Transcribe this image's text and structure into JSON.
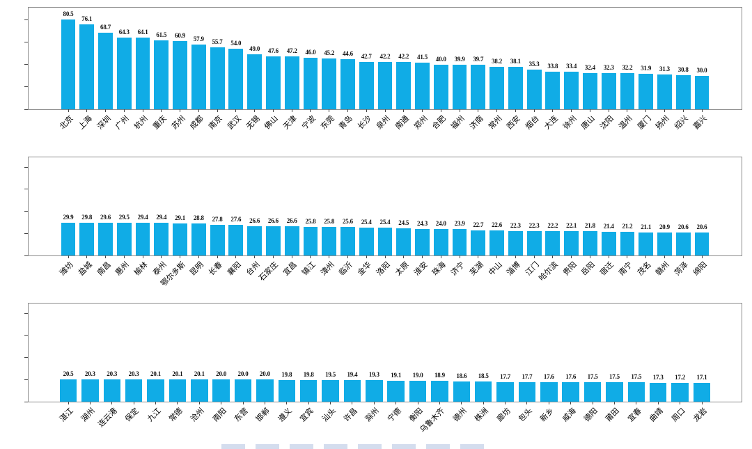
{
  "figure": {
    "background": "#ffffff",
    "bar_color": "#10ace6",
    "axis_color": "#8a8a8a",
    "text_color": "#000000",
    "bottom_caption_clipped": true
  },
  "chart_data": [
    {
      "type": "bar",
      "panel": "top",
      "title": "",
      "xlabel": "",
      "ylabel": "",
      "yticks": [
        0,
        20,
        40,
        60,
        80
      ],
      "ylim": [
        0,
        91
      ],
      "grid": false,
      "legend": null,
      "bar_color": "#10ace6",
      "value_labels_shown": true,
      "categories": [
        "北京",
        "上海",
        "深圳",
        "广州",
        "杭州",
        "重庆",
        "苏州",
        "成都",
        "南京",
        "武汉",
        "无锡",
        "佛山",
        "天津",
        "宁波",
        "东莞",
        "青岛",
        "长沙",
        "泉州",
        "南通",
        "郑州",
        "合肥",
        "福州",
        "济南",
        "常州",
        "西安",
        "烟台",
        "大连",
        "徐州",
        "唐山",
        "沈阳",
        "温州",
        "厦门",
        "扬州",
        "绍兴",
        "嘉兴"
      ],
      "values": [
        80.5,
        76.1,
        68.7,
        64.3,
        64.1,
        61.5,
        60.9,
        57.9,
        55.7,
        54.0,
        49.0,
        47.6,
        47.2,
        46.0,
        45.2,
        44.6,
        42.7,
        42.2,
        42.2,
        41.5,
        40.0,
        39.9,
        39.7,
        38.2,
        38.1,
        35.3,
        33.8,
        33.4,
        32.4,
        32.3,
        32.2,
        31.9,
        31.3,
        30.8,
        30.0
      ]
    },
    {
      "type": "bar",
      "panel": "middle",
      "title": "",
      "xlabel": "",
      "ylabel": "",
      "yticks": [
        0,
        20,
        40,
        60,
        80
      ],
      "ylim": [
        0,
        89
      ],
      "grid": false,
      "legend": null,
      "bar_color": "#10ace6",
      "value_labels_shown": true,
      "categories": [
        "潍坊",
        "盐城",
        "南昌",
        "惠州",
        "榆林",
        "泰州",
        "鄂尔多斯",
        "昆明",
        "长春",
        "襄阳",
        "台州",
        "石家庄",
        "宜昌",
        "镇江",
        "漳州",
        "临沂",
        "金华",
        "洛阳",
        "太原",
        "淮安",
        "珠海",
        "济宁",
        "芜湖",
        "中山",
        "淄博",
        "江门",
        "哈尔滨",
        "贵阳",
        "岳阳",
        "宿迁",
        "南宁",
        "茂名",
        "赣州",
        "菏泽",
        "绵阳"
      ],
      "values": [
        29.9,
        29.8,
        29.6,
        29.5,
        29.4,
        29.4,
        29.1,
        28.8,
        27.8,
        27.6,
        26.6,
        26.6,
        26.6,
        25.8,
        25.8,
        25.6,
        25.4,
        25.4,
        24.5,
        24.3,
        24.0,
        23.9,
        22.7,
        22.6,
        22.3,
        22.3,
        22.2,
        22.1,
        21.8,
        21.4,
        21.2,
        21.1,
        20.9,
        20.6,
        20.6
      ]
    },
    {
      "type": "bar",
      "panel": "bottom",
      "title": "",
      "xlabel": "",
      "ylabel": "",
      "yticks": [
        0,
        20,
        40,
        60,
        80
      ],
      "ylim": [
        0,
        89
      ],
      "grid": false,
      "legend": null,
      "bar_color": "#10ace6",
      "value_labels_shown": true,
      "categories": [
        "湛江",
        "湖州",
        "连云港",
        "保定",
        "九江",
        "常德",
        "沧州",
        "南阳",
        "东营",
        "邯郸",
        "遵义",
        "宜宾",
        "汕头",
        "许昌",
        "滁州",
        "宁德",
        "衡阳",
        "乌鲁木齐",
        "德州",
        "株洲",
        "廊坊",
        "包头",
        "新乡",
        "威海",
        "德阳",
        "莆田",
        "宜春",
        "曲靖",
        "周口",
        "龙岩"
      ],
      "values": [
        20.5,
        20.3,
        20.3,
        20.3,
        20.1,
        20.1,
        20.1,
        20.0,
        20.0,
        20.0,
        19.8,
        19.8,
        19.5,
        19.4,
        19.3,
        19.1,
        19.0,
        18.9,
        18.6,
        18.5,
        17.7,
        17.7,
        17.6,
        17.6,
        17.5,
        17.5,
        17.5,
        17.3,
        17.2,
        17.1
      ]
    }
  ]
}
